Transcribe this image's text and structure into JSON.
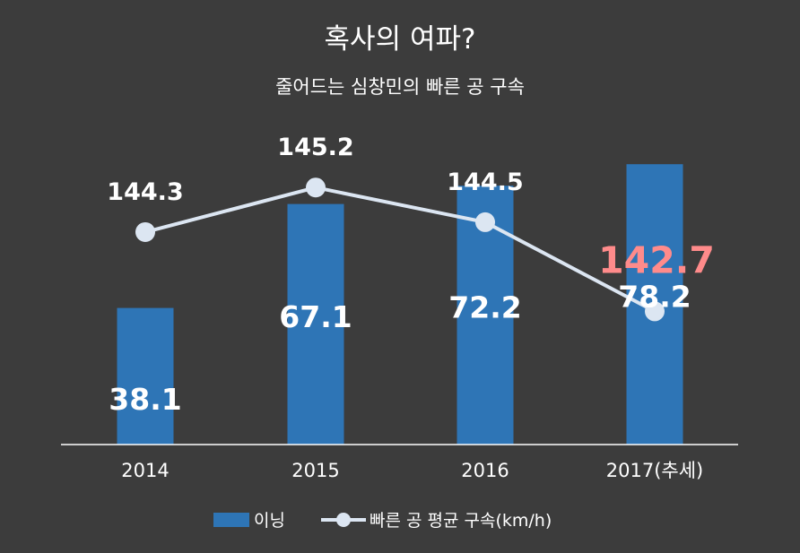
{
  "chart_data": {
    "type": "bar",
    "title": "혹사의 여파?",
    "subtitle": "줄어드는 심창민의 빠른 공 구속",
    "categories": [
      "2014",
      "2015",
      "2016",
      "2017(추세)"
    ],
    "series": [
      {
        "name": "이닝",
        "type": "bar",
        "values": [
          38.1,
          67.1,
          72.2,
          78.2
        ],
        "labels": [
          "38.1",
          "67.1",
          "72.2",
          "78.2"
        ],
        "color": "#2e75b6"
      },
      {
        "name": "빠른 공 평균 구속(km/h)",
        "type": "line",
        "values": [
          144.3,
          145.2,
          144.5,
          142.7
        ],
        "labels": [
          "144.3",
          "145.2",
          "144.5",
          "142.7"
        ],
        "color": "#dce6f2",
        "highlight_color": "#ff8b8b"
      }
    ],
    "bar_ylim": [
      0,
      80
    ],
    "line_ylim": [
      140.5,
      146.0
    ],
    "grid": false,
    "legend_position": "bottom",
    "axis_color": "#ffffff",
    "text_color": "#ffffff"
  }
}
